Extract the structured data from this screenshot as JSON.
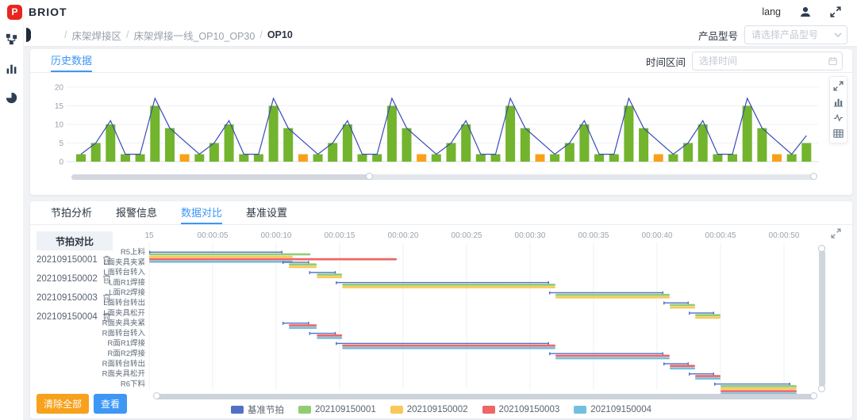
{
  "header": {
    "brand": "BRIOT",
    "logo_letter": "P",
    "lang_label": "lang"
  },
  "breadcrumb": {
    "items": [
      "床架焊接区",
      "床架焊接一线_OP10_OP30",
      "OP10"
    ]
  },
  "product_model": {
    "label": "产品型号",
    "placeholder": "请选择产品型号"
  },
  "history_panel": {
    "tab_label": "历史数据",
    "time_label": "时间区间",
    "time_placeholder": "选择时间"
  },
  "detail_tabs": {
    "items": [
      "节拍分析",
      "报警信息",
      "数据对比",
      "基准设置"
    ],
    "active": "数据对比"
  },
  "compare_panel": {
    "title": "节拍对比",
    "items": [
      "202109150001",
      "202109150002",
      "202109150003",
      "202109150004"
    ],
    "clear_all_label": "清除全部",
    "view_label": "查看"
  },
  "legend": {
    "items": [
      {
        "label": "基准节拍",
        "color": "#5470c6"
      },
      {
        "label": "202109150001",
        "color": "#91cc75"
      },
      {
        "label": "202109150002",
        "color": "#fac858"
      },
      {
        "label": "202109150003",
        "color": "#ee6666"
      },
      {
        "label": "202109150004",
        "color": "#73c0de"
      }
    ]
  },
  "colors": {
    "accent": "#3e97f5",
    "bar_green": "#72b42d",
    "bar_orange": "#f9a01b",
    "line_blue": "#3b4bb8",
    "logo_red": "#e8251f"
  },
  "chart_data": [
    {
      "type": "bar",
      "title": "",
      "ylim": [
        0,
        20
      ],
      "yticks": [
        0,
        5,
        10,
        15,
        20
      ],
      "grid": true,
      "values": [
        2,
        5,
        10,
        2,
        2,
        15,
        9,
        2,
        2,
        5,
        10,
        2,
        2,
        15,
        9,
        2,
        2,
        5,
        10,
        2,
        2,
        15,
        9,
        2,
        2,
        5,
        10,
        2,
        2,
        15,
        9,
        2,
        2,
        5,
        10,
        2,
        2,
        15,
        9,
        2,
        2,
        5,
        10,
        2,
        2,
        15,
        9,
        2,
        2,
        5
      ],
      "highlight_indices": [
        7,
        15,
        23,
        31,
        39,
        47
      ],
      "line_series": {
        "name": "line-overlay",
        "values": [
          2,
          5,
          11,
          2,
          2,
          17,
          9,
          5.5,
          2,
          5,
          11,
          2,
          2,
          17,
          9,
          5.5,
          2,
          5,
          11,
          2,
          2,
          17,
          9,
          5.5,
          2,
          5,
          11,
          2,
          2,
          17,
          9,
          5.5,
          2,
          5,
          11,
          2,
          2,
          17,
          9,
          5.5,
          2,
          5,
          11,
          2,
          2,
          17,
          9,
          5.5,
          2,
          7
        ]
      }
    },
    {
      "type": "gantt",
      "xlim_seconds": [
        0,
        52
      ],
      "xticks": [
        {
          "label": "15",
          "t": 0
        },
        {
          "label": "00:00:05",
          "t": 5
        },
        {
          "label": "00:00:10",
          "t": 10
        },
        {
          "label": "00:00:15",
          "t": 15
        },
        {
          "label": "00:00:20",
          "t": 20
        },
        {
          "label": "00:00:25",
          "t": 25
        },
        {
          "label": "00:00:30",
          "t": 30
        },
        {
          "label": "00:00:35",
          "t": 35
        },
        {
          "label": "00:00:40",
          "t": 40
        },
        {
          "label": "00:00:45",
          "t": 45
        },
        {
          "label": "00:00:50",
          "t": 50
        }
      ],
      "rows": [
        {
          "label": "R5上料",
          "bars": [
            {
              "s": 0,
              "start": 0,
              "end": 10.5
            },
            {
              "s": 1,
              "start": 0,
              "end": 12.7
            },
            {
              "s": 2,
              "start": 0,
              "end": 11.3
            },
            {
              "s": 3,
              "start": 0,
              "end": 19.5
            },
            {
              "s": 4,
              "start": 0,
              "end": 11.3
            }
          ]
        },
        {
          "label": "L面夹具夹紧",
          "bars": [
            {
              "s": 0,
              "start": 10.5,
              "end": 12.6
            },
            {
              "s": 1,
              "start": 11,
              "end": 13.2
            },
            {
              "s": 2,
              "start": 11,
              "end": 13.2
            }
          ]
        },
        {
          "label": "L面转台转入",
          "bars": [
            {
              "s": 0,
              "start": 12.6,
              "end": 14.7
            },
            {
              "s": 1,
              "start": 13.2,
              "end": 15.2
            },
            {
              "s": 2,
              "start": 13.2,
              "end": 15.2
            }
          ]
        },
        {
          "label": "L面R1焊接",
          "bars": [
            {
              "s": 0,
              "start": 14.7,
              "end": 31.5
            },
            {
              "s": 1,
              "start": 15.2,
              "end": 32
            },
            {
              "s": 2,
              "start": 15.2,
              "end": 32
            }
          ]
        },
        {
          "label": "L面R2焊接",
          "bars": [
            {
              "s": 0,
              "start": 31.5,
              "end": 40.5
            },
            {
              "s": 1,
              "start": 32,
              "end": 41
            },
            {
              "s": 2,
              "start": 32,
              "end": 41
            }
          ]
        },
        {
          "label": "L面转台转出",
          "bars": [
            {
              "s": 0,
              "start": 40.5,
              "end": 42.5
            },
            {
              "s": 1,
              "start": 41,
              "end": 43
            },
            {
              "s": 2,
              "start": 41,
              "end": 43
            }
          ]
        },
        {
          "label": "L面夹具松开",
          "bars": [
            {
              "s": 0,
              "start": 42.5,
              "end": 44.5
            },
            {
              "s": 1,
              "start": 43,
              "end": 45
            },
            {
              "s": 2,
              "start": 43,
              "end": 45
            }
          ]
        },
        {
          "label": "R面夹具夹紧",
          "bars": [
            {
              "s": 0,
              "start": 10.5,
              "end": 12.6
            },
            {
              "s": 3,
              "start": 11,
              "end": 13.2
            },
            {
              "s": 4,
              "start": 11,
              "end": 13.2
            }
          ]
        },
        {
          "label": "R面转台转入",
          "bars": [
            {
              "s": 0,
              "start": 12.6,
              "end": 14.7
            },
            {
              "s": 3,
              "start": 13.2,
              "end": 15.2
            },
            {
              "s": 4,
              "start": 13.2,
              "end": 15.2
            }
          ]
        },
        {
          "label": "R面R1焊接",
          "bars": [
            {
              "s": 0,
              "start": 14.7,
              "end": 31.5
            },
            {
              "s": 3,
              "start": 15.2,
              "end": 32
            },
            {
              "s": 4,
              "start": 15.2,
              "end": 32
            }
          ]
        },
        {
          "label": "R面R2焊接",
          "bars": [
            {
              "s": 0,
              "start": 31.5,
              "end": 40.5
            },
            {
              "s": 3,
              "start": 32,
              "end": 41
            },
            {
              "s": 4,
              "start": 32,
              "end": 41
            }
          ]
        },
        {
          "label": "R面转台转出",
          "bars": [
            {
              "s": 0,
              "start": 40.5,
              "end": 42.5
            },
            {
              "s": 3,
              "start": 41,
              "end": 43
            },
            {
              "s": 4,
              "start": 41,
              "end": 43
            }
          ]
        },
        {
          "label": "R面夹具松开",
          "bars": [
            {
              "s": 0,
              "start": 42.5,
              "end": 44.5
            },
            {
              "s": 3,
              "start": 43,
              "end": 45
            },
            {
              "s": 4,
              "start": 43,
              "end": 45
            }
          ]
        },
        {
          "label": "R6下料",
          "bars": [
            {
              "s": 0,
              "start": 44.5,
              "end": 50.5
            },
            {
              "s": 1,
              "start": 45,
              "end": 51
            },
            {
              "s": 2,
              "start": 45,
              "end": 51
            },
            {
              "s": 3,
              "start": 45,
              "end": 51
            },
            {
              "s": 4,
              "start": 45,
              "end": 51
            }
          ]
        }
      ]
    }
  ]
}
